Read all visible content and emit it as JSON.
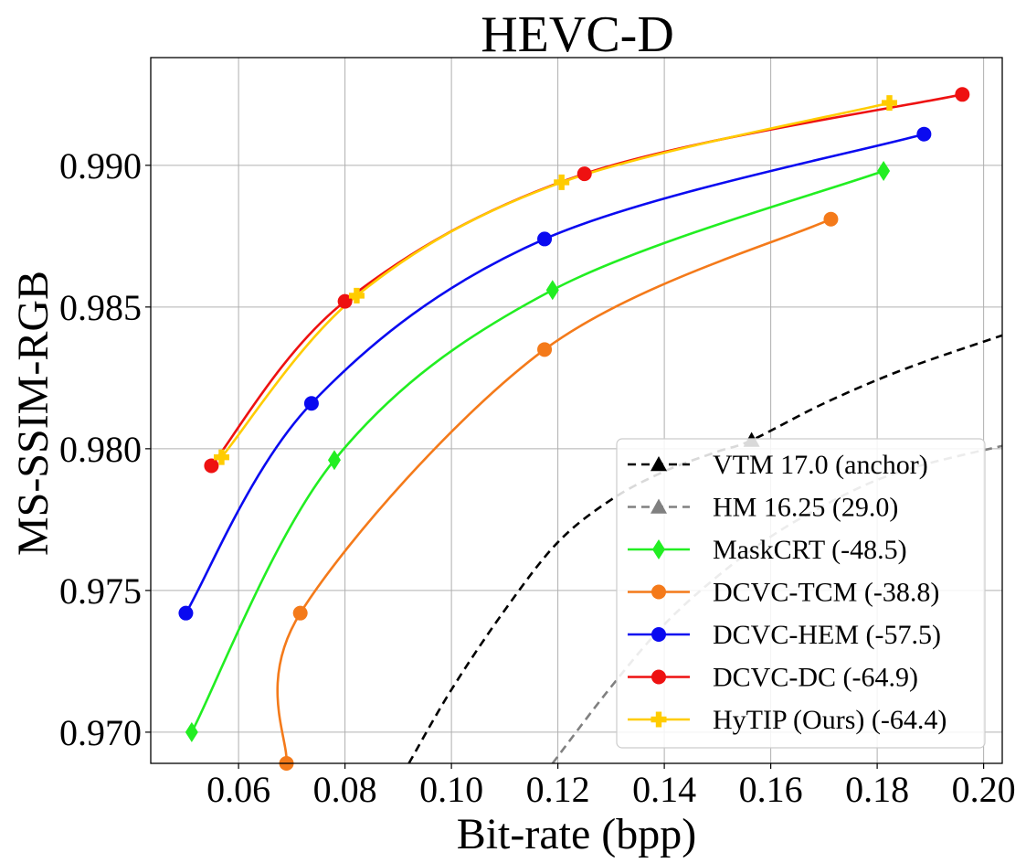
{
  "chart_data": {
    "type": "line",
    "title": "HEVC-D",
    "xlabel": "Bit-rate (bpp)",
    "ylabel": "MS-SSIM-RGB",
    "xlim": [
      0.0435,
      0.2035
    ],
    "ylim": [
      0.9689,
      0.9938
    ],
    "xticks": [
      0.06,
      0.08,
      0.1,
      0.12,
      0.14,
      0.16,
      0.18,
      0.2
    ],
    "xtick_labels": [
      "0.06",
      "0.08",
      "0.10",
      "0.12",
      "0.14",
      "0.16",
      "0.18",
      "0.20"
    ],
    "yticks": [
      0.97,
      0.975,
      0.98,
      0.985,
      0.99
    ],
    "ytick_labels": [
      "0.970",
      "0.975",
      "0.980",
      "0.985",
      "0.990"
    ],
    "grid": true,
    "legend_position": "lower-right",
    "series": [
      {
        "name": "VTM 17.0 (anchor)",
        "color": "#000000",
        "dash": "dashed",
        "marker": "triangle",
        "x": [
          0.092,
          0.1,
          0.11,
          0.12,
          0.13,
          0.14,
          0.15,
          0.1564,
          0.17,
          0.185,
          0.2035
        ],
        "y": [
          0.9689,
          0.9715,
          0.9743,
          0.9767,
          0.9782,
          0.9792,
          0.9799,
          0.9803,
          0.9816,
          0.9828,
          0.984
        ],
        "markers_x": [
          0.1564
        ],
        "markers_y": [
          0.9803
        ]
      },
      {
        "name": "HM 16.25 (29.0)",
        "color": "#808080",
        "dash": "dashed",
        "marker": "triangle",
        "x": [
          0.119,
          0.13,
          0.14,
          0.15,
          0.16,
          0.17,
          0.18,
          0.19,
          0.2035
        ],
        "y": [
          0.9689,
          0.9716,
          0.9738,
          0.9755,
          0.9769,
          0.978,
          0.9789,
          0.9795,
          0.9801
        ]
      },
      {
        "name": "MaskCRT (-48.5)",
        "color": "#22ee22",
        "dash": "solid",
        "marker": "diamond",
        "x": [
          0.0512,
          0.078,
          0.119,
          0.1812
        ],
        "y": [
          0.97,
          0.9796,
          0.9856,
          0.9898
        ]
      },
      {
        "name": "DCVC-TCM (-38.8)",
        "color": "#f47a1a",
        "dash": "solid",
        "marker": "circle",
        "x": [
          0.069,
          0.0716,
          0.1175,
          0.1713
        ],
        "y": [
          0.9689,
          0.9742,
          0.9835,
          0.9881
        ]
      },
      {
        "name": "DCVC-HEM (-57.5)",
        "color": "#0a0af0",
        "dash": "solid",
        "marker": "circle",
        "x": [
          0.0501,
          0.0737,
          0.1175,
          0.1888
        ],
        "y": [
          0.9742,
          0.9816,
          0.9874,
          0.9911
        ]
      },
      {
        "name": "DCVC-DC (-64.9)",
        "color": "#ee1111",
        "dash": "solid",
        "marker": "circle",
        "x": [
          0.0549,
          0.08,
          0.125,
          0.196
        ],
        "y": [
          0.9794,
          0.9852,
          0.9897,
          0.9925
        ]
      },
      {
        "name": "HyTIP (Ours) (-64.4)",
        "color": "#ffcc00",
        "dash": "solid",
        "marker": "plus",
        "x": [
          0.0568,
          0.0822,
          0.1207,
          0.1823
        ],
        "y": [
          0.9797,
          0.9854,
          0.9894,
          0.9922
        ]
      }
    ]
  }
}
